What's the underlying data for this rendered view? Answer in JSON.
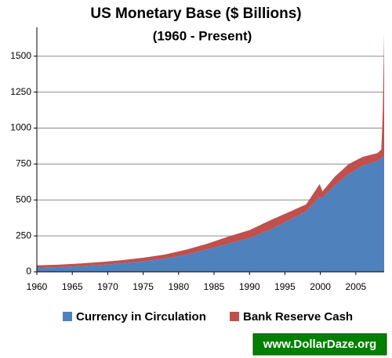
{
  "chart_data": {
    "type": "stacked-area",
    "title": "US Monetary Base ($ Billions)",
    "subtitle": "(1960 - Present)",
    "annotation": "www.DollarDaze.org",
    "x": [
      1960,
      1963,
      1966,
      1969,
      1972,
      1975,
      1978,
      1981,
      1984,
      1987,
      1990,
      1993,
      1996,
      1998,
      1999.9,
      2000.3,
      2002,
      2004,
      2006,
      2008,
      2008.6,
      2008.8,
      2009
    ],
    "series": [
      {
        "name": "Currency in Circulation",
        "color": "#4f81bd",
        "values": [
          29,
          33,
          40,
          48,
          59,
          73,
          92,
          118,
          155,
          195,
          235,
          295,
          370,
          420,
          520,
          515,
          600,
          680,
          740,
          770,
          790,
          800,
          810
        ]
      },
      {
        "name": "Bank Reserve Cash",
        "color": "#c0504d",
        "values": [
          16,
          17,
          18,
          20,
          22,
          25,
          28,
          35,
          40,
          50,
          55,
          65,
          55,
          50,
          90,
          45,
          60,
          70,
          60,
          55,
          60,
          300,
          850
        ]
      }
    ],
    "xlim": [
      1960,
      2009
    ],
    "xticks": [
      1960,
      1965,
      1970,
      1975,
      1980,
      1985,
      1990,
      1995,
      2000,
      2005
    ],
    "ylim": [
      0,
      1700
    ],
    "yticks": [
      0,
      250,
      500,
      750,
      1000,
      1250,
      1500
    ],
    "grid": true,
    "legend": "bottom"
  }
}
